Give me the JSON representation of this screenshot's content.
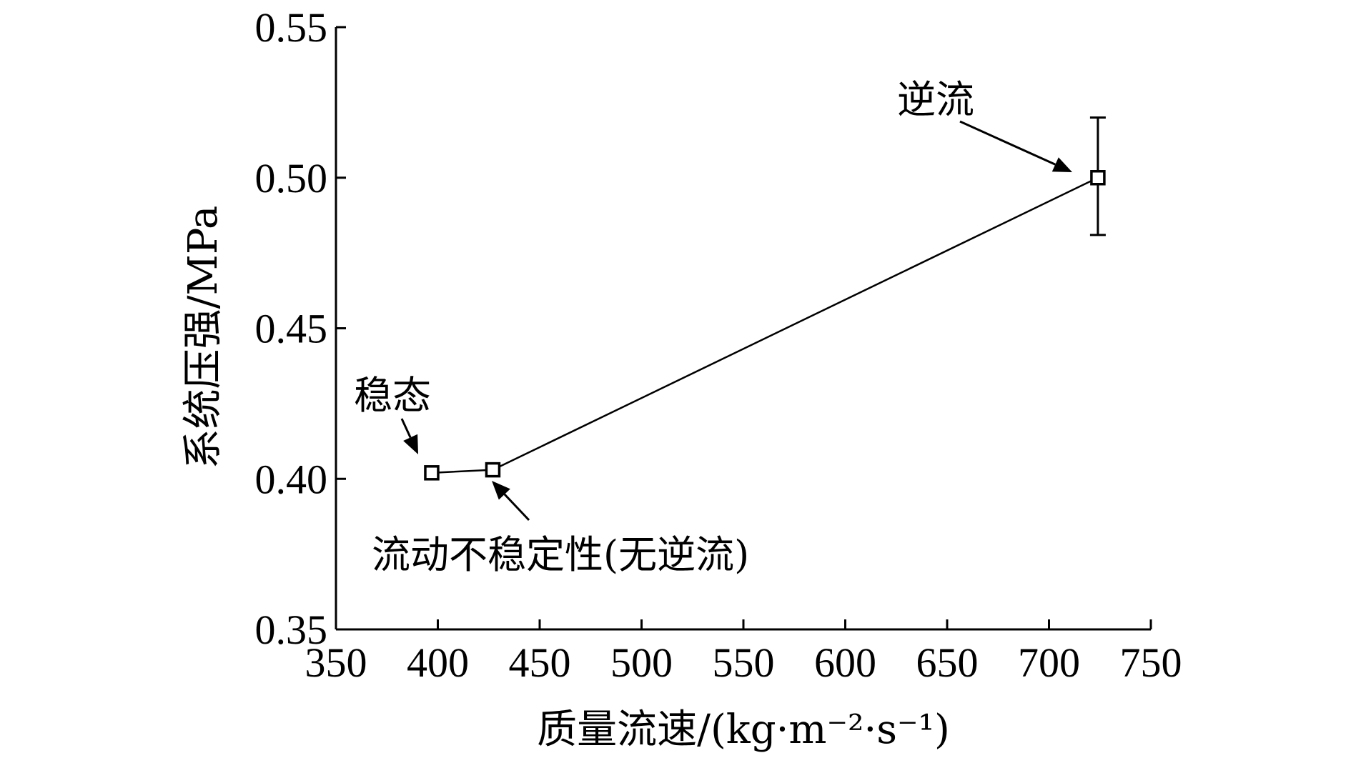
{
  "chart_data": {
    "type": "line",
    "xlabel": "质量流速/(kg·m⁻²·s⁻¹)",
    "ylabel": "系统压强/MPa",
    "xlim": [
      350,
      750
    ],
    "ylim": [
      0.35,
      0.55
    ],
    "x_ticks": [
      "350",
      "400",
      "450",
      "500",
      "550",
      "600",
      "650",
      "700",
      "750"
    ],
    "y_ticks": [
      "0.35",
      "0.40",
      "0.45",
      "0.50",
      "0.55"
    ],
    "grid": false,
    "series": [
      {
        "marker": "open-square",
        "x": [
          397,
          427,
          724
        ],
        "y": [
          0.402,
          0.403,
          0.5
        ],
        "error_bars": [
          null,
          null,
          [
            0.481,
            0.52
          ]
        ]
      }
    ],
    "annotations": [
      {
        "text": "稳态",
        "point_index": 0
      },
      {
        "text": "流动不稳定性(无逆流)",
        "point_index": 1
      },
      {
        "text": "逆流",
        "point_index": 2
      }
    ]
  }
}
